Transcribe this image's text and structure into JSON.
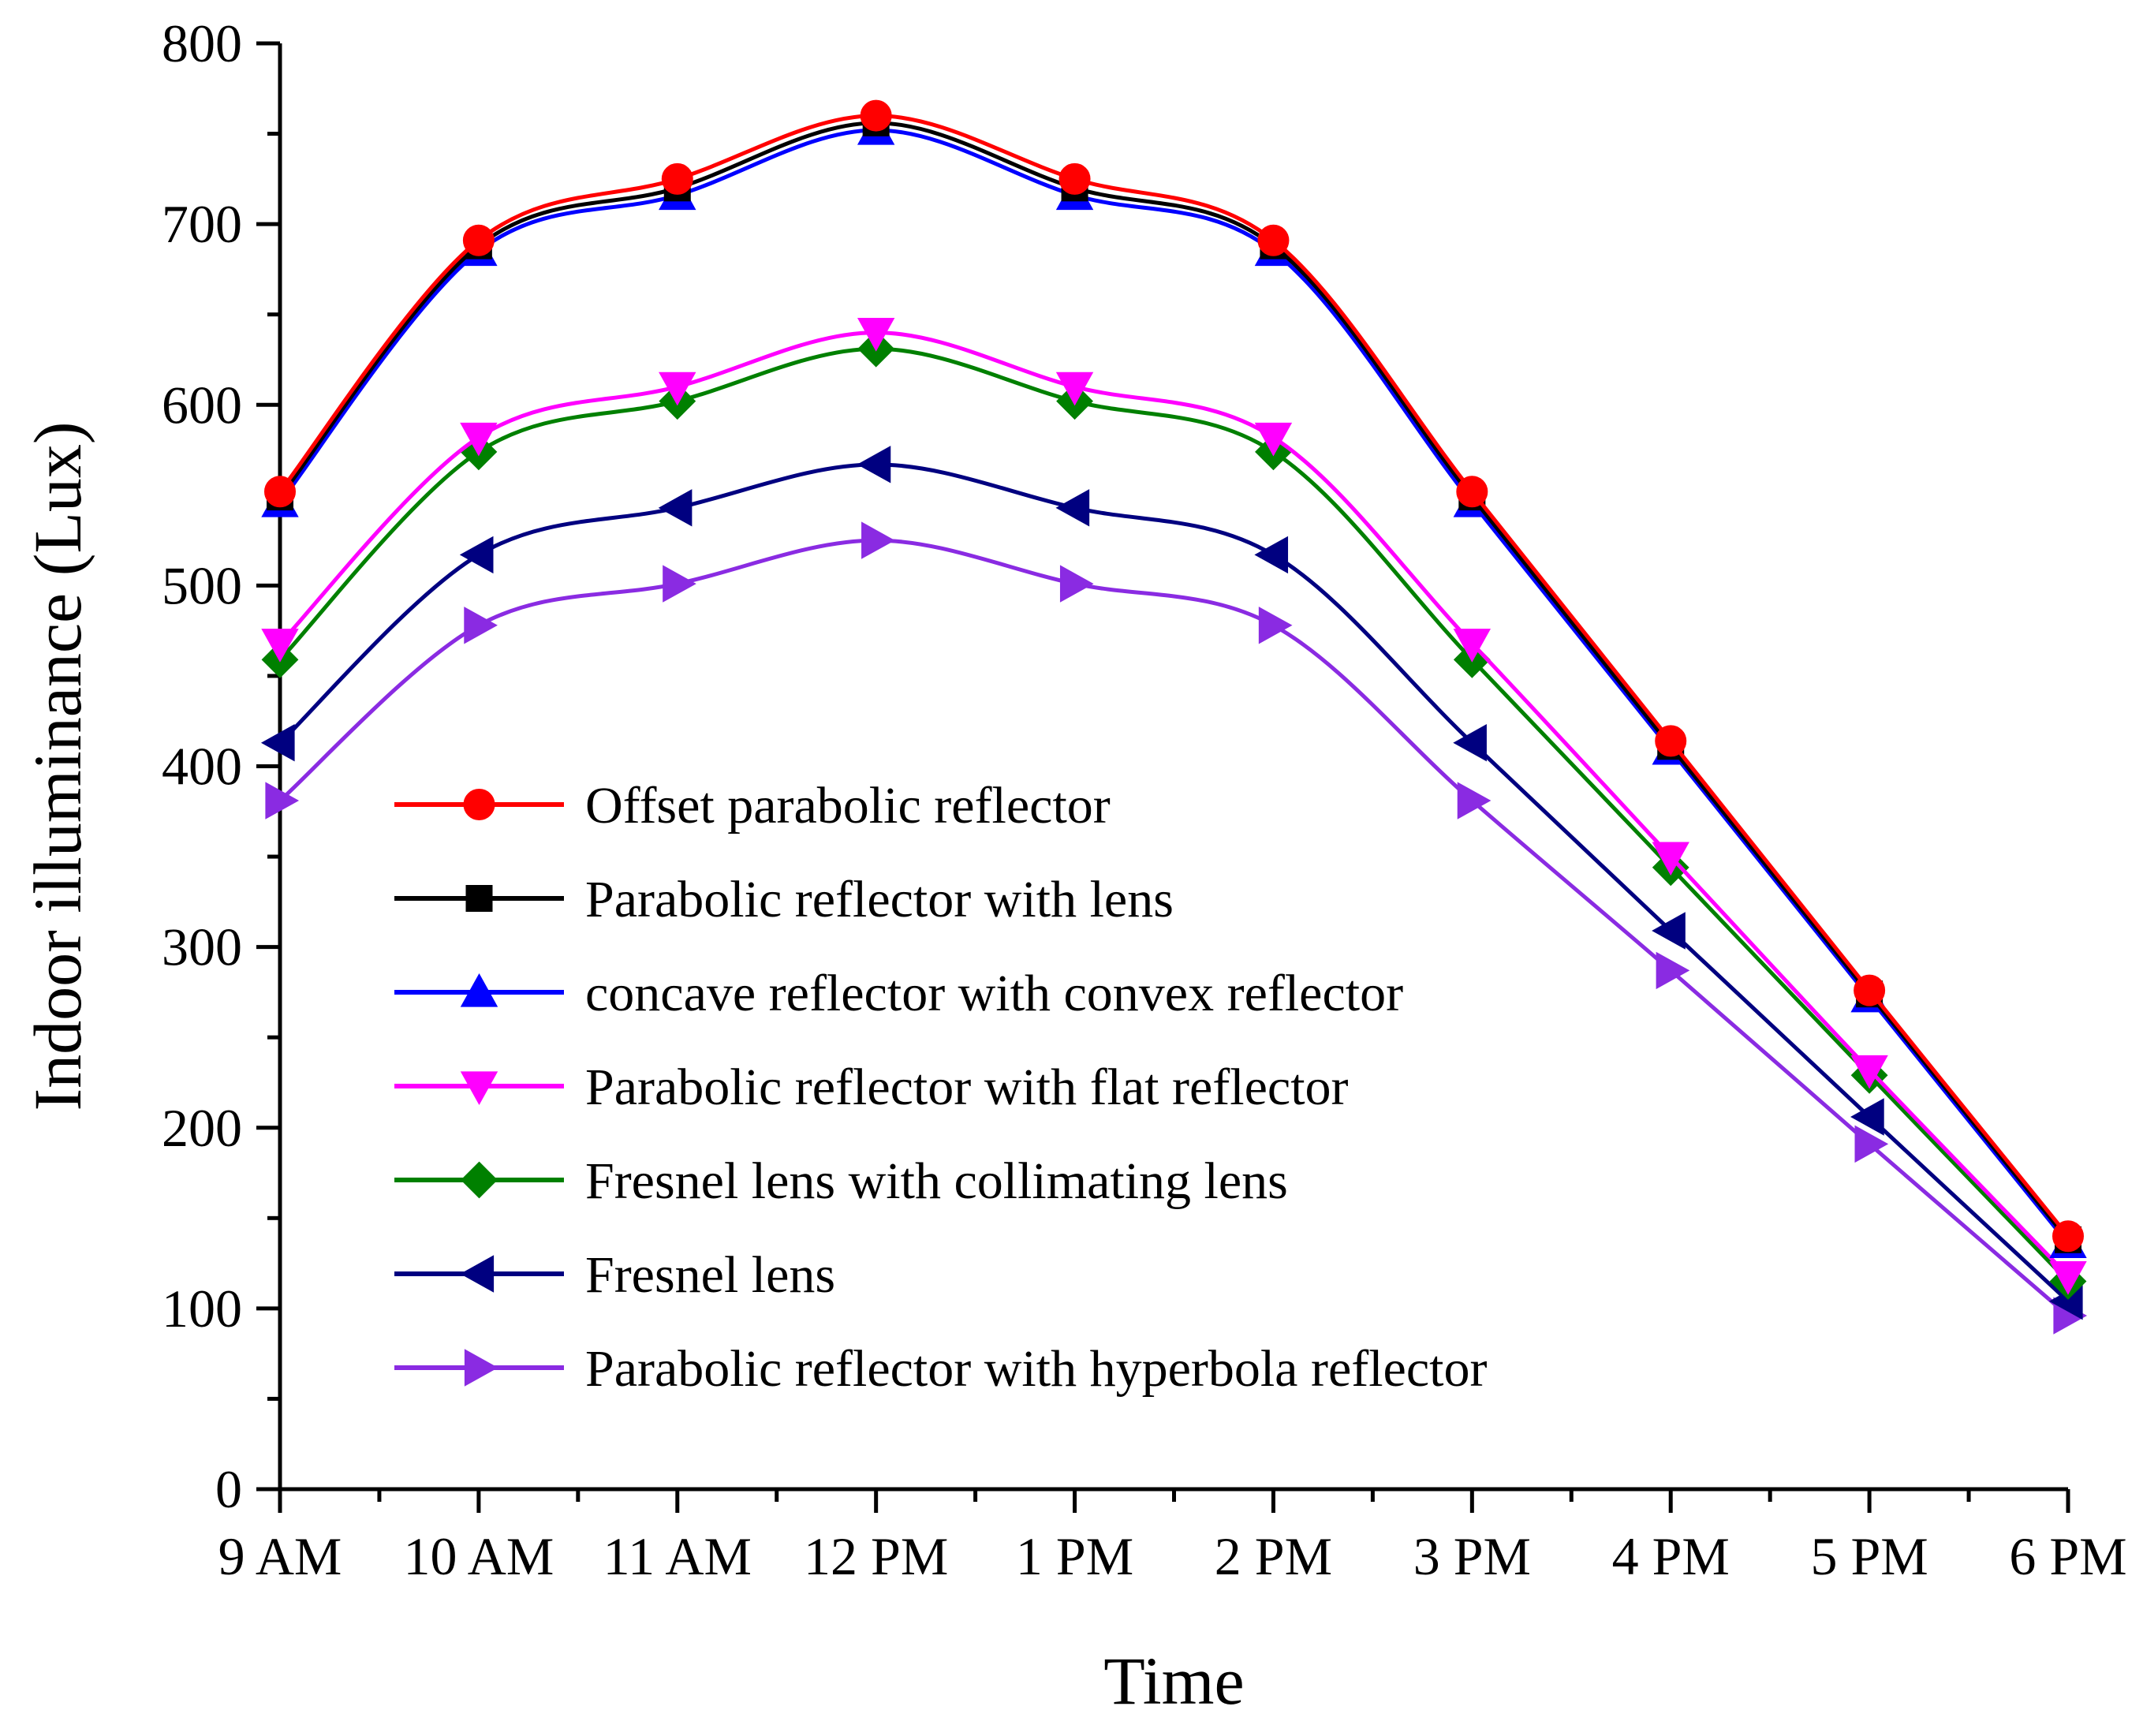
{
  "chart_data": {
    "type": "line",
    "title": "",
    "xlabel": "Time",
    "ylabel": "Indoor illuminance (Lux)",
    "categories": [
      "9 AM",
      "10 AM",
      "11 AM",
      "12 PM",
      "1 PM",
      "2 PM",
      "3 PM",
      "4 PM",
      "5 PM",
      "6 PM"
    ],
    "ylim": [
      0,
      800
    ],
    "yticks": [
      "0",
      "100",
      "200",
      "300",
      "400",
      "500",
      "600",
      "700",
      "800"
    ],
    "grid": false,
    "legend_position": "center-left",
    "series": [
      {
        "name": "Offset parabolic reflector",
        "color": "#ff0000",
        "marker": "circle",
        "values": [
          552,
          691,
          725,
          760,
          725,
          691,
          552,
          414,
          276,
          140
        ]
      },
      {
        "name": "Parabolic reflector with lens",
        "color": "#000000",
        "marker": "square",
        "values": [
          549,
          688,
          720,
          756,
          720,
          688,
          549,
          411,
          274,
          138
        ]
      },
      {
        "name": "concave reflector with convex reflector",
        "color": "#0000ff",
        "marker": "triangle-up",
        "values": [
          546,
          685,
          716,
          752,
          716,
          685,
          546,
          409,
          272,
          136
        ]
      },
      {
        "name": "Parabolic reflector with flat reflector",
        "color": "#ff00ff",
        "marker": "triangle-down",
        "values": [
          468,
          582,
          610,
          640,
          610,
          582,
          468,
          350,
          232,
          118
        ]
      },
      {
        "name": "Fresnel lens with collimating lens",
        "color": "#008000",
        "marker": "diamond",
        "values": [
          459,
          574,
          602,
          631,
          602,
          574,
          459,
          344,
          229,
          115
        ]
      },
      {
        "name": "Fresnel lens",
        "color": "#000080",
        "marker": "triangle-left",
        "values": [
          413,
          517,
          543,
          567,
          543,
          517,
          413,
          309,
          206,
          104
        ]
      },
      {
        "name": "Parabolic reflector with hyperbola reflector",
        "color": "#8a2be2",
        "marker": "triangle-right",
        "values": [
          381,
          478,
          501,
          525,
          501,
          478,
          381,
          287,
          191,
          96
        ]
      }
    ]
  }
}
